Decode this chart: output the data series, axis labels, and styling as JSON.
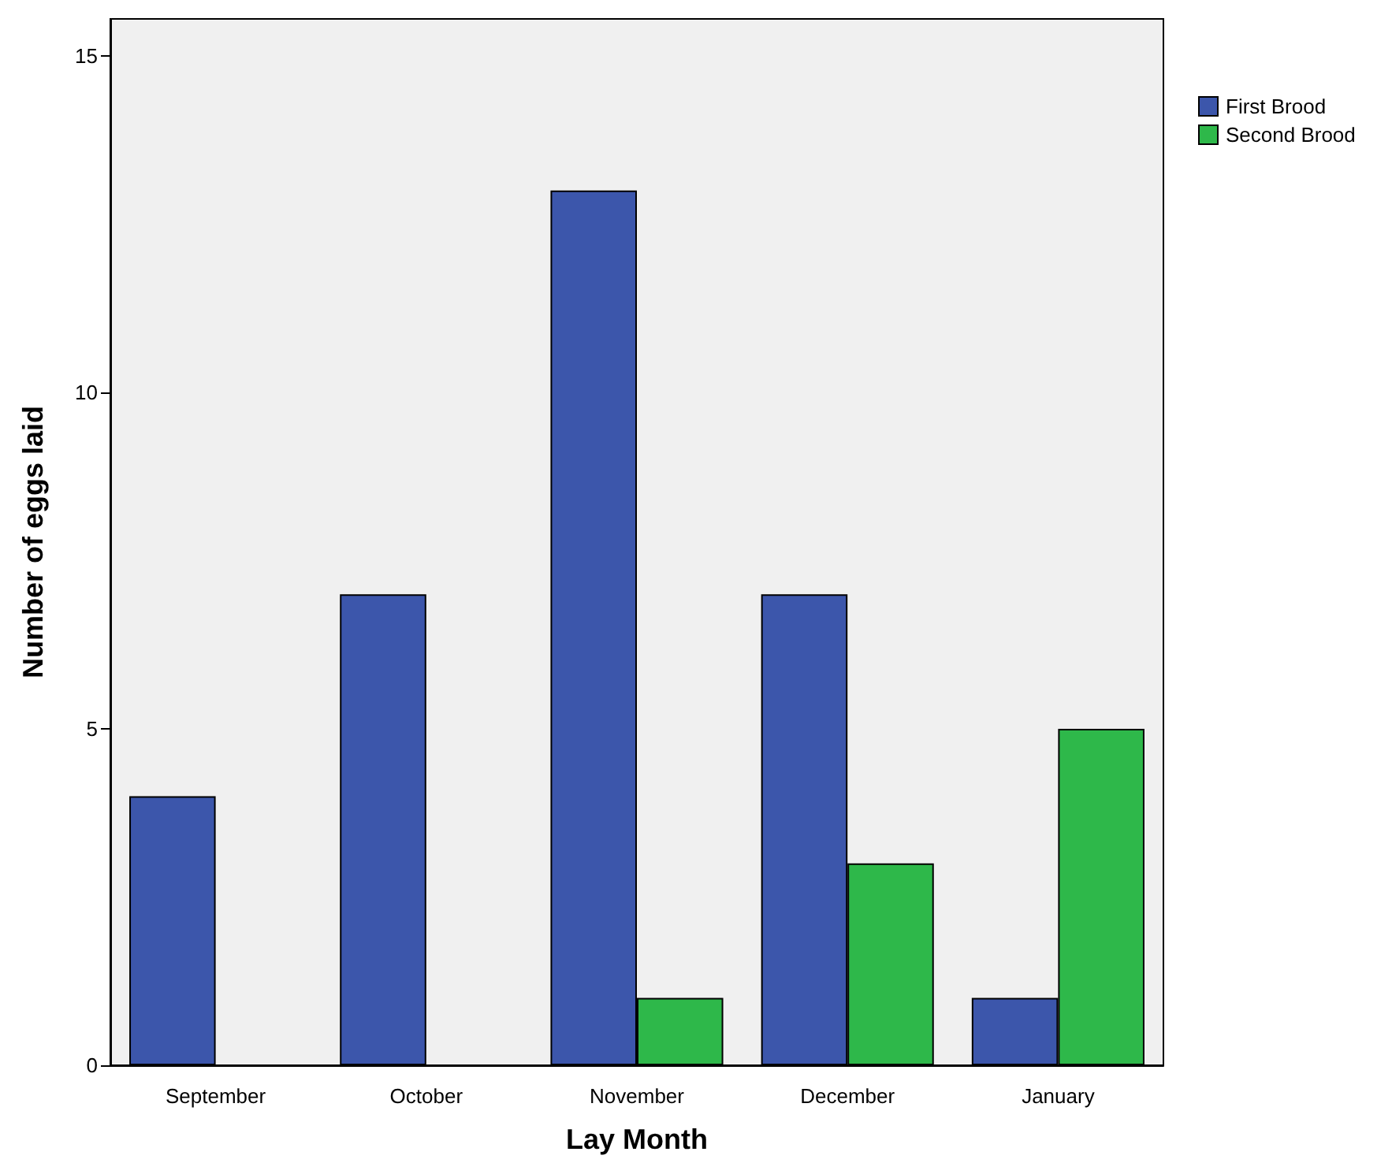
{
  "chart_data": {
    "type": "bar",
    "xlabel": "Lay Month",
    "ylabel": "Number of eggs laid",
    "categories": [
      "September",
      "October",
      "November",
      "December",
      "January"
    ],
    "series": [
      {
        "name": "First Brood",
        "color": "#3c56ab",
        "values": [
          4,
          7,
          13,
          7,
          1
        ]
      },
      {
        "name": "Second Brood",
        "color": "#2eb84a",
        "values": [
          null,
          null,
          1,
          3,
          5
        ]
      }
    ],
    "ylim": [
      0,
      15.55
    ],
    "yticks": [
      0,
      5,
      10,
      15
    ],
    "legend": "top right"
  }
}
